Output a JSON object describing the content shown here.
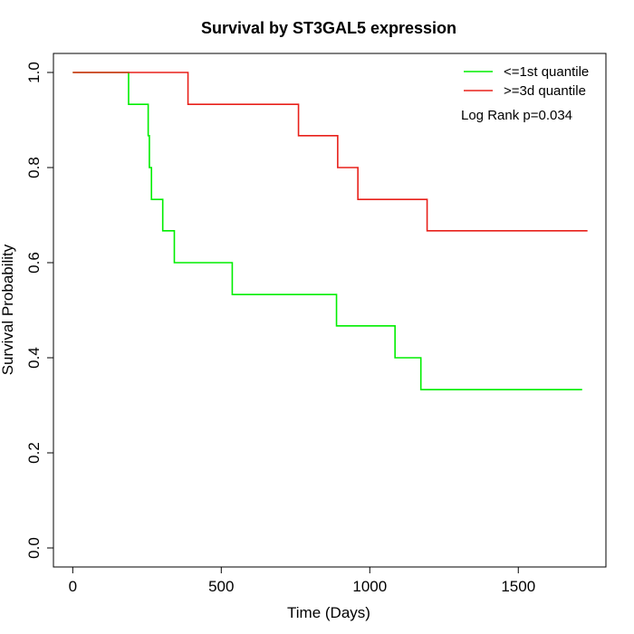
{
  "chart_data": {
    "type": "line",
    "subtype": "kaplan-meier step plot",
    "title": "Survival by ST3GAL5 expression",
    "xlabel": "Time (Days)",
    "ylabel": "Survival Probability",
    "xlim": [
      -65,
      1795
    ],
    "ylim": [
      -0.04,
      1.04
    ],
    "xticks": [
      0,
      500,
      1000,
      1500
    ],
    "yticks": [
      0.0,
      0.2,
      0.4,
      0.6,
      0.8,
      1.0
    ],
    "xtick_labels": [
      "0",
      "500",
      "1000",
      "1500"
    ],
    "ytick_labels": [
      "0.0",
      "0.2",
      "0.4",
      "0.6",
      "0.8",
      "1.0"
    ],
    "grid": false,
    "legend_position": "top-right",
    "annotation": "Log Rank p=0.034",
    "series": [
      {
        "name": "<=1st quantile",
        "color": "#00ee00",
        "x": [
          0,
          188,
          254,
          258,
          265,
          303,
          342,
          537,
          888,
          1085,
          1172,
          1715
        ],
        "y": [
          1.0,
          0.933,
          0.867,
          0.8,
          0.733,
          0.667,
          0.6,
          0.533,
          0.467,
          0.4,
          0.333,
          0.333
        ]
      },
      {
        "name": ">=3d quantile",
        "color": "#e8201a",
        "x": [
          0,
          388,
          760,
          892,
          960,
          1193,
          1733
        ],
        "y": [
          1.0,
          0.933,
          0.867,
          0.8,
          0.733,
          0.667,
          0.667
        ]
      }
    ]
  }
}
